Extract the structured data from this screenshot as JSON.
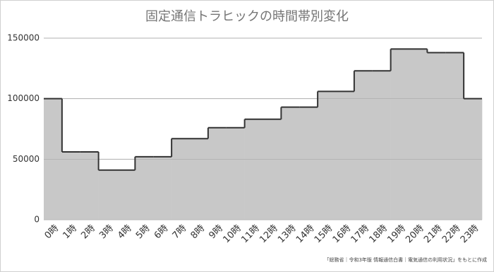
{
  "chart_data": {
    "type": "step-area",
    "title": "固定通信トラヒックの時間帯別変化",
    "categories": [
      "0時",
      "1時",
      "2時",
      "3時",
      "4時",
      "5時",
      "6時",
      "7時",
      "8時",
      "9時",
      "10時",
      "11時",
      "12時",
      "13時",
      "14時",
      "15時",
      "16時",
      "17時",
      "18時",
      "19時",
      "20時",
      "21時",
      "22時",
      "23時"
    ],
    "values": [
      100000,
      56000,
      56000,
      41000,
      41000,
      52000,
      52000,
      67000,
      67000,
      76000,
      76000,
      83000,
      83000,
      93000,
      93000,
      106000,
      106000,
      123000,
      123000,
      141000,
      141000,
      138000,
      138000,
      100000
    ],
    "color": "#c8c8c8",
    "line_color": "#333333",
    "ylim": [
      0,
      150000
    ],
    "yticks": [
      0,
      50000,
      100000,
      150000
    ],
    "grid": true,
    "source": "「総務省｜令和3年版 情報通信白書｜電気通信の利用状況」をもとに作成"
  }
}
